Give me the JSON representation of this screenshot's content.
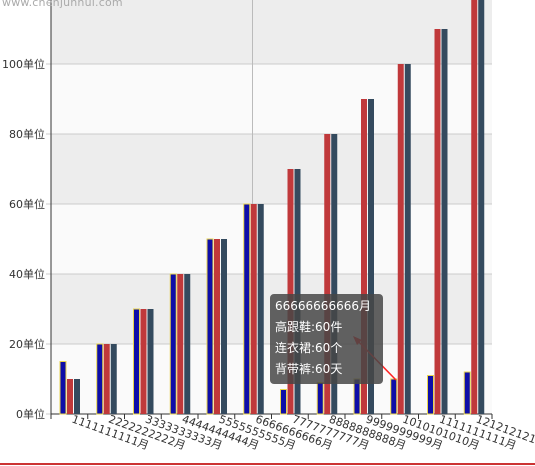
{
  "watermark": "www.chenjunhui.com",
  "colors": {
    "series1": "#0e0ea8",
    "series2": "#c0393b",
    "series3": "#344a5e",
    "bar_edge": "#e8d44d",
    "grid": "#cccccc",
    "band_light": "#fafafa",
    "band_dark": "#ededed",
    "pointer": "#ff2222",
    "tooltip_bg": "rgba(70,70,70,0.85)"
  },
  "chart_data": {
    "type": "bar",
    "title": "",
    "xlabel": "",
    "ylabel": "",
    "ylim": [
      0,
      120
    ],
    "y_ticks": [
      0,
      20,
      40,
      60,
      80,
      100
    ],
    "y_tick_labels": [
      "0单位",
      "20单位",
      "40单位",
      "60单位",
      "80单位",
      "100单位"
    ],
    "grid": true,
    "categories": [
      "1111111111月",
      "2222222222月",
      "3333333333月",
      "4444444444月",
      "5555555555月",
      "6666666666月",
      "7777777777月",
      "8888888888月",
      "9999999999月",
      "1010101010月",
      "1111111111月",
      "1212121212月"
    ],
    "series": [
      {
        "name": "高跟鞋",
        "values": [
          15,
          20,
          30,
          40,
          50,
          60,
          7,
          9,
          10,
          10,
          11,
          12
        ]
      },
      {
        "name": "连衣裙",
        "values": [
          10,
          20,
          30,
          40,
          50,
          60,
          70,
          80,
          90,
          100,
          110,
          120
        ]
      },
      {
        "name": "背带裤",
        "values": [
          10,
          20,
          30,
          40,
          50,
          60,
          70,
          80,
          90,
          100,
          110,
          120
        ]
      }
    ]
  },
  "tooltip": {
    "title": "66666666666月",
    "lines": [
      "高跟鞋:60件",
      "连衣裙:60个",
      "背带裤:60天"
    ]
  }
}
